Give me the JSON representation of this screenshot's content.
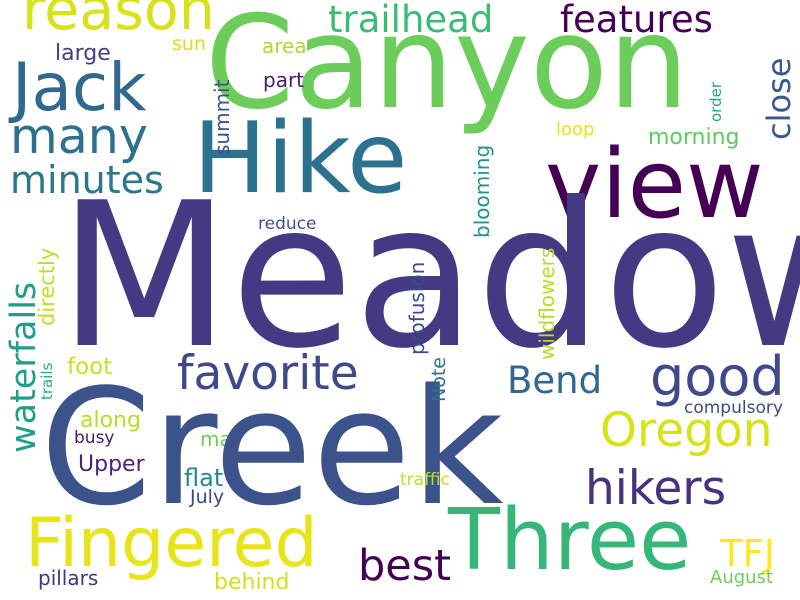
{
  "cloud": {
    "words": {
      "meadow": "Meadow",
      "creek": "Creek",
      "canyon": "Canyon",
      "hike": "Hike",
      "view": "view",
      "three": "Three",
      "fingered": "Fingered",
      "jack": "Jack",
      "reason": "reason",
      "many": "many",
      "good": "good",
      "oregon": "Oregon",
      "hikers": "hikers",
      "favorite": "favorite",
      "best": "best",
      "trailhead": "trailhead",
      "features": "features",
      "minutes": "minutes",
      "bend": "Bend",
      "tfj": "TFJ",
      "upper": "Upper",
      "flat": "flat",
      "july": "July",
      "may": "may",
      "along": "along",
      "busy": "busy",
      "foot": "foot",
      "pillars": "pillars",
      "behind": "behind",
      "august": "August",
      "traffic": "traffic",
      "compulsory": "compulsory",
      "large": "large",
      "sun": "sun",
      "area": "area",
      "part": "part",
      "loop": "loop",
      "morning": "morning",
      "reduce": "reduce",
      "close": "close",
      "summit": "summit",
      "order": "order",
      "waterfalls": "waterfalls",
      "directly": "directly",
      "trails": "trails",
      "profusion": "profusion",
      "note": "Note",
      "blooming": "blooming",
      "wildflowers": "wildflowers"
    },
    "colors": {
      "meadow": "#443983",
      "creek": "#3b528b",
      "canyon": "#6ccd5a",
      "hike": "#2c728e",
      "view": "#440154",
      "three": "#35b779",
      "fingered": "#e7e419",
      "jack": "#31688e",
      "reason": "#d8e219",
      "many": "#2c728e",
      "good": "#3e4989",
      "oregon": "#d8e219",
      "hikers": "#46327e",
      "favorite": "#3e4989",
      "best": "#440154",
      "trailhead": "#3bbb75",
      "features": "#440154",
      "minutes": "#2a788e",
      "bend": "#31688e",
      "tfj": "#fde725",
      "upper": "#482475",
      "flat": "#25858e",
      "july": "#3e4989",
      "may": "#6ece58",
      "along": "#b5de2b",
      "busy": "#481a6c",
      "foot": "#c8e020",
      "pillars": "#46327e",
      "behind": "#d0e11c",
      "august": "#6ece58",
      "traffic": "#bddf26",
      "compulsory": "#3e4989",
      "large": "#433e85",
      "sun": "#d2e21b",
      "area": "#a8db34",
      "part": "#481a6c",
      "loop": "#e4e419",
      "morning": "#5ec962",
      "reduce": "#3b528b",
      "close": "#38598c",
      "summit": "#3b528b",
      "order": "#21a585",
      "waterfalls": "#1f9e89",
      "directly": "#bddf26",
      "trails": "#27ad81",
      "profusion": "#3e4989",
      "note": "#2c728e",
      "blooming": "#21918c",
      "wildflowers": "#b5de2b"
    }
  }
}
